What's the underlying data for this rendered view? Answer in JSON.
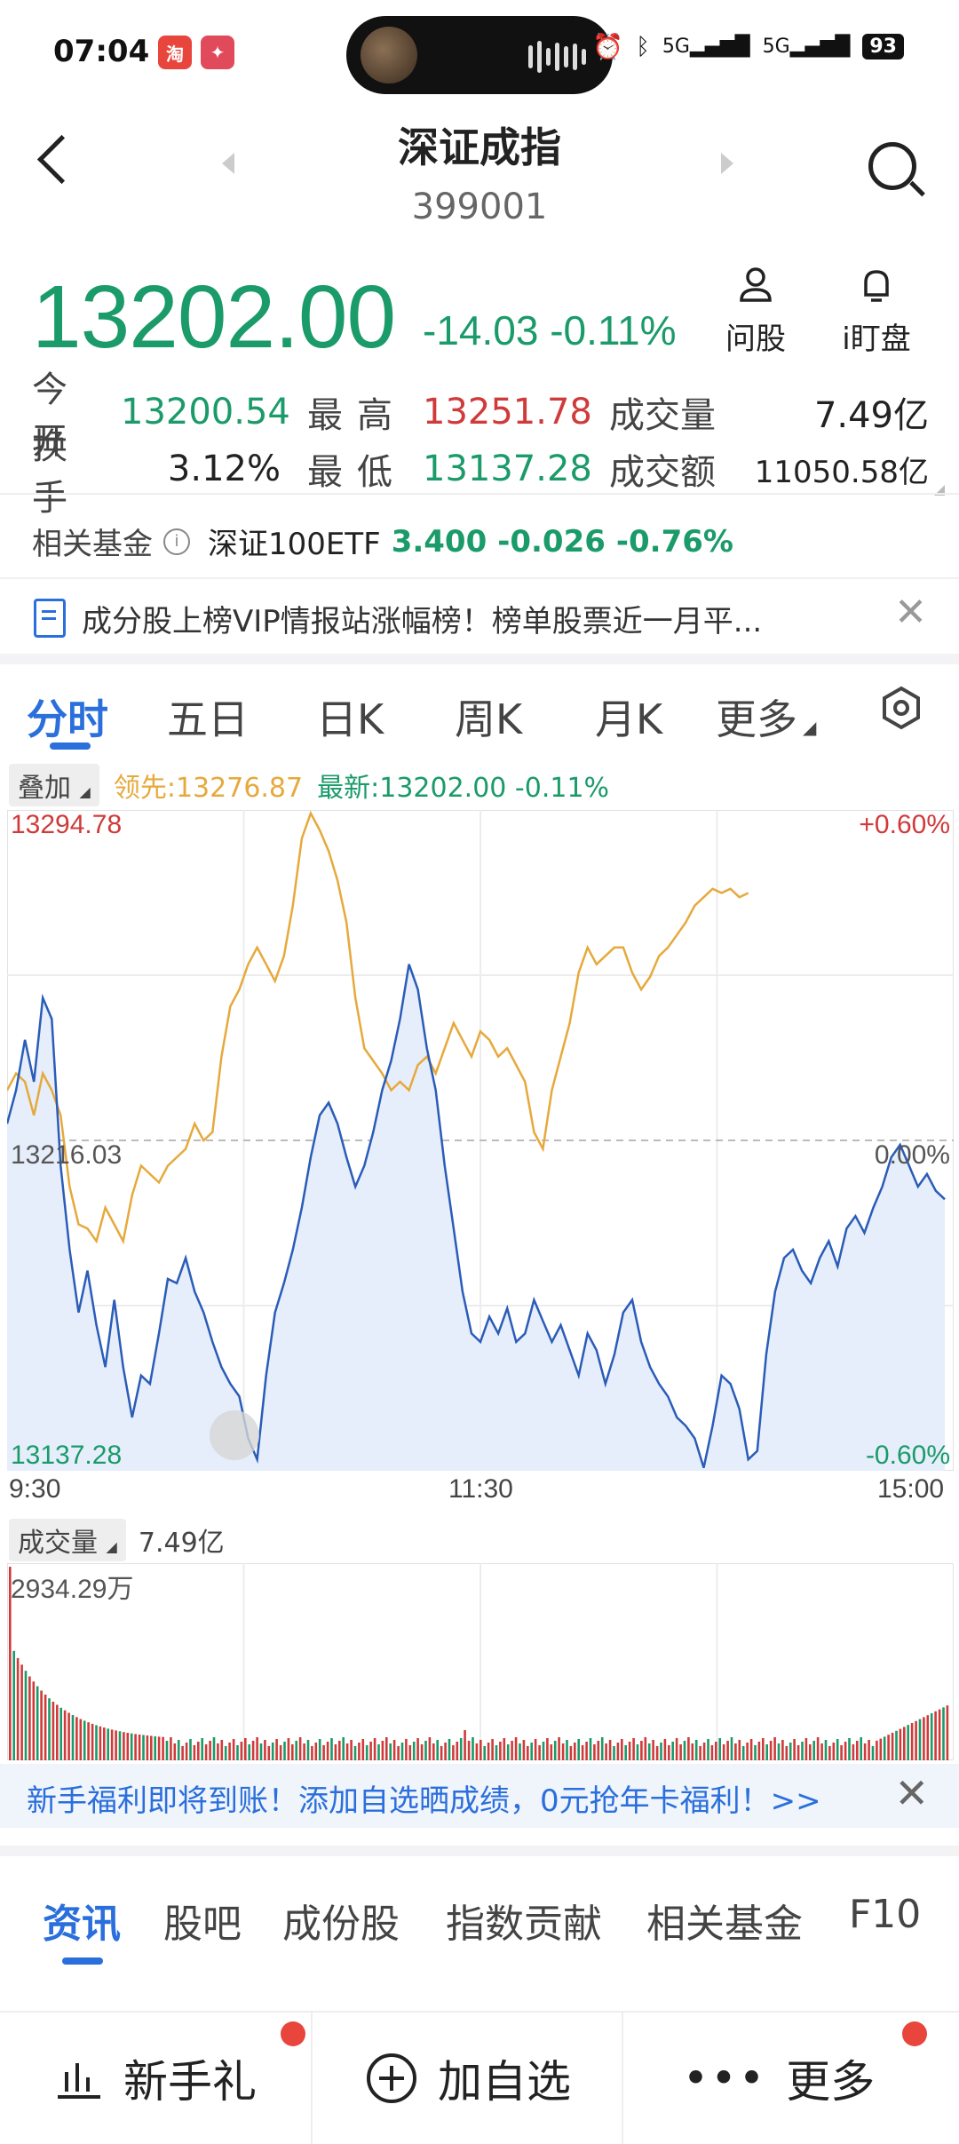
{
  "status_bar": {
    "time": "07:04",
    "battery": "93",
    "signal1": "5G",
    "signal2": "5G"
  },
  "header": {
    "title": "深证成指",
    "code": "399001"
  },
  "quote": {
    "price": "13202.00",
    "change": "-14.03 -0.11%",
    "ask_label": "问股",
    "watch_label": "i盯盘"
  },
  "stats": {
    "open_label": "今开",
    "open_value": "13200.54",
    "high_label": "最高",
    "high_value": "13251.78",
    "volume_label": "成交量",
    "volume_value": "7.49亿",
    "turnover_label": "换手",
    "turnover_value": "3.12%",
    "low_label": "最低",
    "low_value": "13137.28",
    "amount_label": "成交额",
    "amount_value": "11050.58亿"
  },
  "fund": {
    "label": "相关基金",
    "name": "深证100ETF",
    "price": "3.400",
    "change": "-0.026",
    "pct": "-0.76%"
  },
  "notice": {
    "text": "成分股上榜VIP情报站涨幅榜！榜单股票近一月平..."
  },
  "chart_tabs": [
    "分时",
    "五日",
    "日K",
    "周K",
    "月K",
    "更多"
  ],
  "overlay": {
    "button": "叠加",
    "leader": "领先:13276.87",
    "latest": "最新:13202.00 -0.11%"
  },
  "chart_labels": {
    "y_top": "13294.78",
    "y_mid": "13216.03",
    "y_bot": "13137.28",
    "pct_top": "+0.60%",
    "pct_mid": "0.00%",
    "pct_bot": "-0.60%",
    "t_start": "9:30",
    "t_mid": "11:30",
    "t_end": "15:00"
  },
  "volume": {
    "button": "成交量",
    "total": "7.49亿",
    "max_label": "2934.29万"
  },
  "banner": {
    "text": "新手福利即将到账！添加自选晒成绩，0元抢年卡福利！>>"
  },
  "news_tabs": [
    "资讯",
    "股吧",
    "成份股",
    "指数贡献",
    "相关基金",
    "F10"
  ],
  "bottom": {
    "gift": "新手礼",
    "add": "加自选",
    "more": "更多"
  },
  "colors": {
    "green": "#1a9b69",
    "red": "#d03a3a",
    "blue": "#2a6fdb",
    "yellow": "#e6a93c"
  },
  "chart_data": {
    "type": "line",
    "title": "",
    "xlabel": "",
    "ylabel": "",
    "ylim": [
      13137.28,
      13294.78
    ],
    "x_ticks": [
      "9:30",
      "11:30",
      "15:00"
    ],
    "baseline": 13216.03,
    "series": [
      {
        "name": "最新",
        "values": [
          13220,
          13228,
          13240,
          13230,
          13250,
          13245,
          13210,
          13190,
          13175,
          13185,
          13172,
          13162,
          13178,
          13162,
          13150,
          13160,
          13158,
          13170,
          13183,
          13182,
          13188,
          13180,
          13175,
          13168,
          13162,
          13158,
          13155,
          13145,
          13140,
          13160,
          13175,
          13182,
          13190,
          13200,
          13212,
          13222,
          13225,
          13220,
          13212,
          13205,
          13210,
          13218,
          13228,
          13235,
          13245,
          13258,
          13252,
          13238,
          13228,
          13210,
          13195,
          13180,
          13170,
          13168,
          13174,
          13170,
          13176,
          13168,
          13170,
          13178,
          13173,
          13168,
          13172,
          13166,
          13160,
          13170,
          13166,
          13158,
          13165,
          13175,
          13178,
          13168,
          13162,
          13158,
          13155,
          13150,
          13148,
          13145,
          13138,
          13148,
          13160,
          13158,
          13152,
          13140,
          13142,
          13165,
          13180,
          13188,
          13190,
          13185,
          13182,
          13188,
          13192,
          13186,
          13195,
          13198,
          13194,
          13200,
          13205,
          13212,
          13215,
          13210,
          13205,
          13208,
          13204,
          13202
        ]
      },
      {
        "name": "领先",
        "values": [
          13228,
          13232,
          13230,
          13222,
          13232,
          13228,
          13222,
          13205,
          13196,
          13195,
          13192,
          13200,
          13196,
          13192,
          13203,
          13210,
          13208,
          13206,
          13210,
          13212,
          13214,
          13220,
          13216,
          13218,
          13236,
          13248,
          13252,
          13258,
          13262,
          13258,
          13254,
          13260,
          13272,
          13288,
          13294,
          13290,
          13285,
          13278,
          13268,
          13250,
          13238,
          13235,
          13232,
          13228,
          13230,
          13228,
          13234,
          13236,
          13232,
          13238,
          13244,
          13240,
          13236,
          13242,
          13240,
          13236,
          13238,
          13234,
          13230,
          13218,
          13214,
          13228,
          13236,
          13244,
          13256,
          13262,
          13258,
          13260,
          13262,
          13262,
          13256,
          13252,
          13255,
          13260,
          13262,
          13265,
          13268,
          13272,
          13274,
          13276,
          13275,
          13276,
          13274,
          13275
        ]
      }
    ]
  }
}
